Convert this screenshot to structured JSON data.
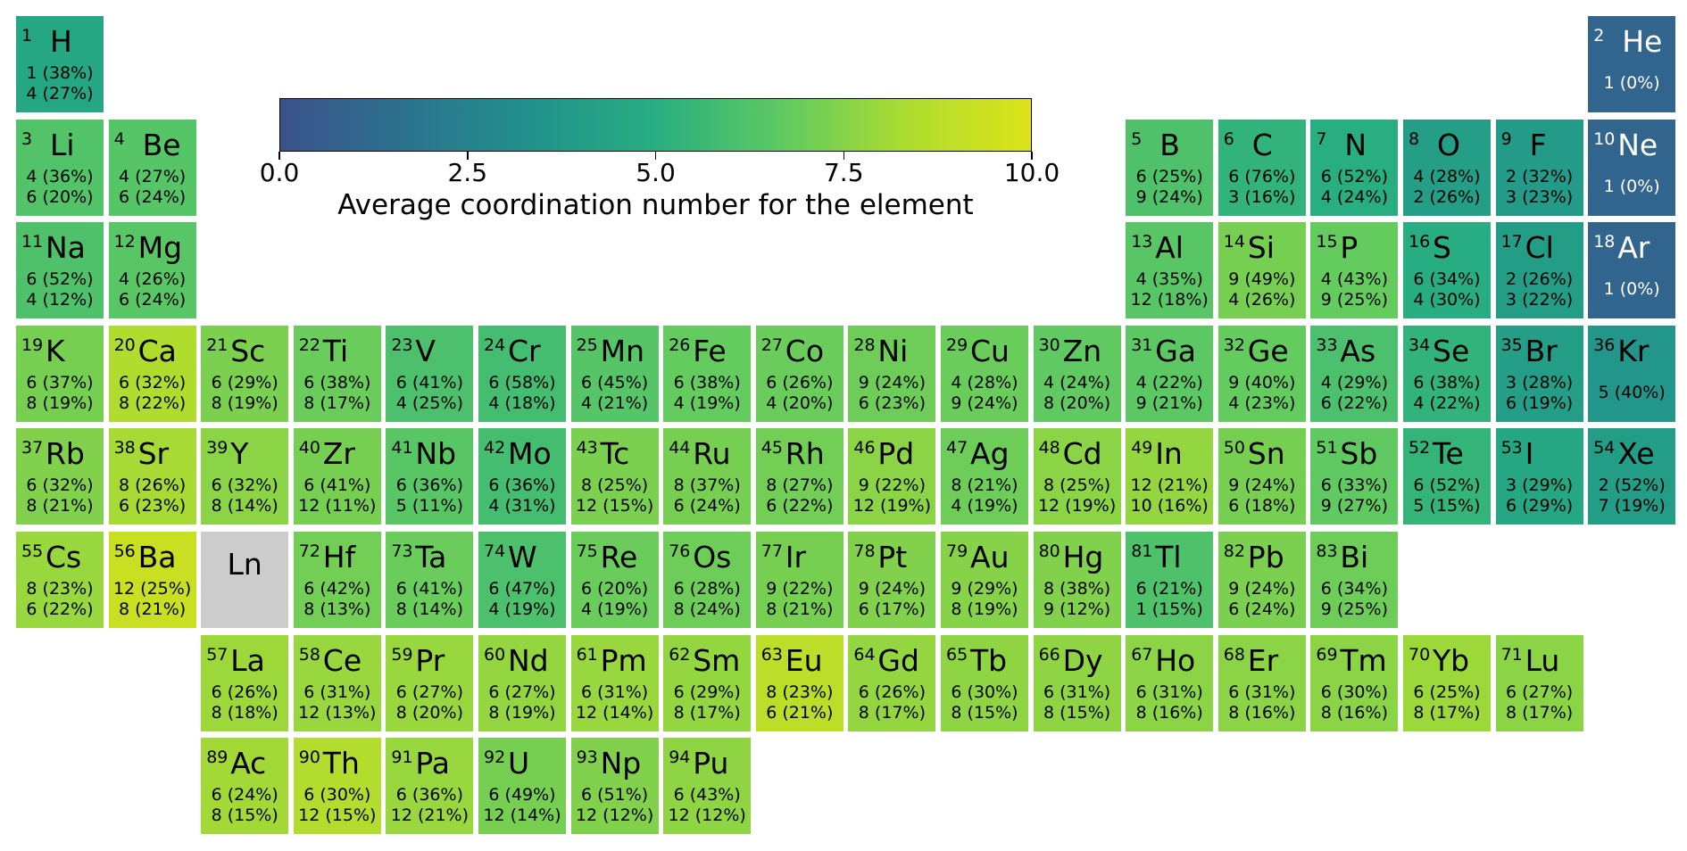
{
  "chart_data": {
    "type": "heatmap",
    "title": "",
    "colorbar": {
      "label": "Average coordination number for the element",
      "range": [
        0,
        10
      ],
      "ticks": [
        "0.0",
        "2.5",
        "5.0",
        "7.5",
        "10.0"
      ],
      "colormap": "viridis",
      "stops": [
        "#3b528b",
        "#2c728e",
        "#21918c",
        "#28ae80",
        "#5ec962",
        "#addc30",
        "#dde318"
      ]
    },
    "missing_color": "#cccccc",
    "elements": [
      {
        "z": "1",
        "sym": "H",
        "row": 1,
        "col": 1,
        "avg": 4.6,
        "l1": "1 (38%)",
        "l2": "4 (27%)"
      },
      {
        "z": "2",
        "sym": "He",
        "row": 1,
        "col": 18,
        "avg": 1.0,
        "l1": "1 (0%)",
        "l2": ""
      },
      {
        "z": "3",
        "sym": "Li",
        "row": 2,
        "col": 1,
        "avg": 6.3,
        "l1": "4 (36%)",
        "l2": "6 (20%)"
      },
      {
        "z": "4",
        "sym": "Be",
        "row": 2,
        "col": 2,
        "avg": 6.4,
        "l1": "4 (27%)",
        "l2": "6 (24%)"
      },
      {
        "z": "5",
        "sym": "B",
        "row": 2,
        "col": 13,
        "avg": 6.2,
        "l1": "6 (25%)",
        "l2": "9 (24%)"
      },
      {
        "z": "6",
        "sym": "C",
        "row": 2,
        "col": 14,
        "avg": 5.3,
        "l1": "6 (76%)",
        "l2": "3 (16%)"
      },
      {
        "z": "7",
        "sym": "N",
        "row": 2,
        "col": 15,
        "avg": 5.0,
        "l1": "6 (52%)",
        "l2": "4 (24%)"
      },
      {
        "z": "8",
        "sym": "O",
        "row": 2,
        "col": 16,
        "avg": 4.1,
        "l1": "4 (28%)",
        "l2": "2 (26%)"
      },
      {
        "z": "9",
        "sym": "F",
        "row": 2,
        "col": 17,
        "avg": 3.9,
        "l1": "2 (32%)",
        "l2": "3 (23%)"
      },
      {
        "z": "10",
        "sym": "Ne",
        "row": 2,
        "col": 18,
        "avg": 1.0,
        "l1": "1 (0%)",
        "l2": ""
      },
      {
        "z": "11",
        "sym": "Na",
        "row": 3,
        "col": 1,
        "avg": 6.2,
        "l1": "6 (52%)",
        "l2": "4 (12%)"
      },
      {
        "z": "12",
        "sym": "Mg",
        "row": 3,
        "col": 2,
        "avg": 6.5,
        "l1": "4 (26%)",
        "l2": "6 (24%)"
      },
      {
        "z": "13",
        "sym": "Al",
        "row": 3,
        "col": 13,
        "avg": 6.5,
        "l1": "4 (35%)",
        "l2": "12 (18%)"
      },
      {
        "z": "14",
        "sym": "Si",
        "row": 3,
        "col": 14,
        "avg": 7.2,
        "l1": "9 (49%)",
        "l2": "4 (26%)"
      },
      {
        "z": "15",
        "sym": "P",
        "row": 3,
        "col": 15,
        "avg": 6.8,
        "l1": "4 (43%)",
        "l2": "9 (25%)"
      },
      {
        "z": "16",
        "sym": "S",
        "row": 3,
        "col": 16,
        "avg": 4.9,
        "l1": "6 (34%)",
        "l2": "4 (30%)"
      },
      {
        "z": "17",
        "sym": "Cl",
        "row": 3,
        "col": 17,
        "avg": 4.0,
        "l1": "2 (26%)",
        "l2": "3 (22%)"
      },
      {
        "z": "18",
        "sym": "Ar",
        "row": 3,
        "col": 18,
        "avg": 1.0,
        "l1": "1 (0%)",
        "l2": ""
      },
      {
        "z": "19",
        "sym": "K",
        "row": 4,
        "col": 1,
        "avg": 7.2,
        "l1": "6 (37%)",
        "l2": "8 (19%)"
      },
      {
        "z": "20",
        "sym": "Ca",
        "row": 4,
        "col": 2,
        "avg": 8.4,
        "l1": "6 (32%)",
        "l2": "8 (22%)"
      },
      {
        "z": "21",
        "sym": "Sc",
        "row": 4,
        "col": 3,
        "avg": 7.3,
        "l1": "6 (29%)",
        "l2": "8 (19%)"
      },
      {
        "z": "22",
        "sym": "Ti",
        "row": 4,
        "col": 4,
        "avg": 6.9,
        "l1": "6 (38%)",
        "l2": "8 (17%)"
      },
      {
        "z": "23",
        "sym": "V",
        "row": 4,
        "col": 5,
        "avg": 6.1,
        "l1": "6 (41%)",
        "l2": "4 (25%)"
      },
      {
        "z": "24",
        "sym": "Cr",
        "row": 4,
        "col": 6,
        "avg": 5.9,
        "l1": "6 (58%)",
        "l2": "4 (18%)"
      },
      {
        "z": "25",
        "sym": "Mn",
        "row": 4,
        "col": 7,
        "avg": 6.4,
        "l1": "6 (45%)",
        "l2": "4 (21%)"
      },
      {
        "z": "26",
        "sym": "Fe",
        "row": 4,
        "col": 8,
        "avg": 6.8,
        "l1": "6 (38%)",
        "l2": "4 (19%)"
      },
      {
        "z": "27",
        "sym": "Co",
        "row": 4,
        "col": 9,
        "avg": 6.9,
        "l1": "6 (26%)",
        "l2": "4 (20%)"
      },
      {
        "z": "28",
        "sym": "Ni",
        "row": 4,
        "col": 10,
        "avg": 7.0,
        "l1": "9 (24%)",
        "l2": "6 (23%)"
      },
      {
        "z": "29",
        "sym": "Cu",
        "row": 4,
        "col": 11,
        "avg": 6.9,
        "l1": "4 (28%)",
        "l2": "9 (24%)"
      },
      {
        "z": "30",
        "sym": "Zn",
        "row": 4,
        "col": 12,
        "avg": 6.7,
        "l1": "4 (24%)",
        "l2": "8 (20%)"
      },
      {
        "z": "31",
        "sym": "Ga",
        "row": 4,
        "col": 13,
        "avg": 6.6,
        "l1": "4 (22%)",
        "l2": "9 (21%)"
      },
      {
        "z": "32",
        "sym": "Ge",
        "row": 4,
        "col": 14,
        "avg": 6.8,
        "l1": "9 (40%)",
        "l2": "4 (23%)"
      },
      {
        "z": "33",
        "sym": "As",
        "row": 4,
        "col": 15,
        "avg": 6.1,
        "l1": "4 (29%)",
        "l2": "6 (22%)"
      },
      {
        "z": "34",
        "sym": "Se",
        "row": 4,
        "col": 16,
        "avg": 5.3,
        "l1": "6 (38%)",
        "l2": "4 (22%)"
      },
      {
        "z": "35",
        "sym": "Br",
        "row": 4,
        "col": 17,
        "avg": 4.1,
        "l1": "3 (28%)",
        "l2": "6 (19%)"
      },
      {
        "z": "36",
        "sym": "Kr",
        "row": 4,
        "col": 18,
        "avg": 3.6,
        "l1": "5 (40%)",
        "l2": ""
      },
      {
        "z": "37",
        "sym": "Rb",
        "row": 5,
        "col": 1,
        "avg": 7.4,
        "l1": "6 (32%)",
        "l2": "8 (21%)"
      },
      {
        "z": "38",
        "sym": "Sr",
        "row": 5,
        "col": 2,
        "avg": 8.2,
        "l1": "8 (26%)",
        "l2": "6 (23%)"
      },
      {
        "z": "39",
        "sym": "Y",
        "row": 5,
        "col": 3,
        "avg": 7.6,
        "l1": "6 (32%)",
        "l2": "8 (14%)"
      },
      {
        "z": "40",
        "sym": "Zr",
        "row": 5,
        "col": 4,
        "avg": 7.2,
        "l1": "6 (41%)",
        "l2": "12 (11%)"
      },
      {
        "z": "41",
        "sym": "Nb",
        "row": 5,
        "col": 5,
        "avg": 6.5,
        "l1": "6 (36%)",
        "l2": "5 (11%)"
      },
      {
        "z": "42",
        "sym": "Mo",
        "row": 5,
        "col": 6,
        "avg": 5.9,
        "l1": "6 (36%)",
        "l2": "4 (31%)"
      },
      {
        "z": "43",
        "sym": "Tc",
        "row": 5,
        "col": 7,
        "avg": 7.3,
        "l1": "8 (25%)",
        "l2": "12 (15%)"
      },
      {
        "z": "44",
        "sym": "Ru",
        "row": 5,
        "col": 8,
        "avg": 7.2,
        "l1": "8 (37%)",
        "l2": "6 (24%)"
      },
      {
        "z": "45",
        "sym": "Rh",
        "row": 5,
        "col": 9,
        "avg": 7.1,
        "l1": "8 (27%)",
        "l2": "6 (22%)"
      },
      {
        "z": "46",
        "sym": "Pd",
        "row": 5,
        "col": 10,
        "avg": 7.6,
        "l1": "9 (22%)",
        "l2": "12 (19%)"
      },
      {
        "z": "47",
        "sym": "Ag",
        "row": 5,
        "col": 11,
        "avg": 7.0,
        "l1": "8 (21%)",
        "l2": "4 (19%)"
      },
      {
        "z": "48",
        "sym": "Cd",
        "row": 5,
        "col": 12,
        "avg": 7.6,
        "l1": "8 (25%)",
        "l2": "12 (19%)"
      },
      {
        "z": "49",
        "sym": "In",
        "row": 5,
        "col": 13,
        "avg": 7.8,
        "l1": "12 (21%)",
        "l2": "10 (16%)"
      },
      {
        "z": "50",
        "sym": "Sn",
        "row": 5,
        "col": 14,
        "avg": 7.2,
        "l1": "9 (24%)",
        "l2": "6 (18%)"
      },
      {
        "z": "51",
        "sym": "Sb",
        "row": 5,
        "col": 15,
        "avg": 6.7,
        "l1": "6 (33%)",
        "l2": "9 (27%)"
      },
      {
        "z": "52",
        "sym": "Te",
        "row": 5,
        "col": 16,
        "avg": 5.4,
        "l1": "6 (52%)",
        "l2": "5 (15%)"
      },
      {
        "z": "53",
        "sym": "I",
        "row": 5,
        "col": 17,
        "avg": 4.6,
        "l1": "3 (29%)",
        "l2": "6 (29%)"
      },
      {
        "z": "54",
        "sym": "Xe",
        "row": 5,
        "col": 18,
        "avg": 4.0,
        "l1": "2 (52%)",
        "l2": "7 (19%)"
      },
      {
        "z": "55",
        "sym": "Cs",
        "row": 6,
        "col": 1,
        "avg": 7.9,
        "l1": "8 (23%)",
        "l2": "6 (22%)"
      },
      {
        "z": "56",
        "sym": "Ba",
        "row": 6,
        "col": 2,
        "avg": 9.3,
        "l1": "12 (25%)",
        "l2": "8 (21%)"
      },
      {
        "z": "",
        "sym": "Ln",
        "row": 6,
        "col": 3,
        "avg": null,
        "l1": "",
        "l2": ""
      },
      {
        "z": "72",
        "sym": "Hf",
        "row": 6,
        "col": 4,
        "avg": 7.1,
        "l1": "6 (42%)",
        "l2": "8 (13%)"
      },
      {
        "z": "73",
        "sym": "Ta",
        "row": 6,
        "col": 5,
        "avg": 6.9,
        "l1": "6 (41%)",
        "l2": "8 (14%)"
      },
      {
        "z": "74",
        "sym": "W",
        "row": 6,
        "col": 6,
        "avg": 6.1,
        "l1": "6 (47%)",
        "l2": "4 (19%)"
      },
      {
        "z": "75",
        "sym": "Re",
        "row": 6,
        "col": 7,
        "avg": 6.9,
        "l1": "6 (20%)",
        "l2": "4 (19%)"
      },
      {
        "z": "76",
        "sym": "Os",
        "row": 6,
        "col": 8,
        "avg": 7.0,
        "l1": "6 (28%)",
        "l2": "8 (24%)"
      },
      {
        "z": "77",
        "sym": "Ir",
        "row": 6,
        "col": 9,
        "avg": 7.2,
        "l1": "9 (22%)",
        "l2": "8 (21%)"
      },
      {
        "z": "78",
        "sym": "Pt",
        "row": 6,
        "col": 10,
        "avg": 7.4,
        "l1": "9 (24%)",
        "l2": "6 (17%)"
      },
      {
        "z": "79",
        "sym": "Au",
        "row": 6,
        "col": 11,
        "avg": 7.5,
        "l1": "9 (29%)",
        "l2": "8 (19%)"
      },
      {
        "z": "80",
        "sym": "Hg",
        "row": 6,
        "col": 12,
        "avg": 7.4,
        "l1": "8 (38%)",
        "l2": "9 (12%)"
      },
      {
        "z": "81",
        "sym": "Tl",
        "row": 6,
        "col": 13,
        "avg": 6.2,
        "l1": "6 (21%)",
        "l2": "1 (15%)"
      },
      {
        "z": "82",
        "sym": "Pb",
        "row": 6,
        "col": 14,
        "avg": 7.3,
        "l1": "9 (24%)",
        "l2": "6 (24%)"
      },
      {
        "z": "83",
        "sym": "Bi",
        "row": 6,
        "col": 15,
        "avg": 7.0,
        "l1": "6 (34%)",
        "l2": "9 (25%)"
      },
      {
        "z": "57",
        "sym": "La",
        "row": 7,
        "col": 3,
        "avg": 8.0,
        "l1": "6 (26%)",
        "l2": "8 (18%)"
      },
      {
        "z": "58",
        "sym": "Ce",
        "row": 7,
        "col": 4,
        "avg": 7.9,
        "l1": "6 (31%)",
        "l2": "12 (13%)"
      },
      {
        "z": "59",
        "sym": "Pr",
        "row": 7,
        "col": 5,
        "avg": 7.9,
        "l1": "6 (27%)",
        "l2": "8 (20%)"
      },
      {
        "z": "60",
        "sym": "Nd",
        "row": 7,
        "col": 6,
        "avg": 7.8,
        "l1": "6 (27%)",
        "l2": "8 (19%)"
      },
      {
        "z": "61",
        "sym": "Pm",
        "row": 7,
        "col": 7,
        "avg": 7.9,
        "l1": "6 (31%)",
        "l2": "12 (14%)"
      },
      {
        "z": "62",
        "sym": "Sm",
        "row": 7,
        "col": 8,
        "avg": 7.8,
        "l1": "6 (29%)",
        "l2": "8 (17%)"
      },
      {
        "z": "63",
        "sym": "Eu",
        "row": 7,
        "col": 9,
        "avg": 8.9,
        "l1": "8 (23%)",
        "l2": "6 (21%)"
      },
      {
        "z": "64",
        "sym": "Gd",
        "row": 7,
        "col": 10,
        "avg": 7.8,
        "l1": "6 (26%)",
        "l2": "8 (17%)"
      },
      {
        "z": "65",
        "sym": "Tb",
        "row": 7,
        "col": 11,
        "avg": 7.7,
        "l1": "6 (30%)",
        "l2": "8 (15%)"
      },
      {
        "z": "66",
        "sym": "Dy",
        "row": 7,
        "col": 12,
        "avg": 7.7,
        "l1": "6 (31%)",
        "l2": "8 (15%)"
      },
      {
        "z": "67",
        "sym": "Ho",
        "row": 7,
        "col": 13,
        "avg": 7.6,
        "l1": "6 (31%)",
        "l2": "8 (16%)"
      },
      {
        "z": "68",
        "sym": "Er",
        "row": 7,
        "col": 14,
        "avg": 7.6,
        "l1": "6 (31%)",
        "l2": "8 (16%)"
      },
      {
        "z": "69",
        "sym": "Tm",
        "row": 7,
        "col": 15,
        "avg": 7.6,
        "l1": "6 (30%)",
        "l2": "8 (16%)"
      },
      {
        "z": "70",
        "sym": "Yb",
        "row": 7,
        "col": 16,
        "avg": 8.0,
        "l1": "6 (25%)",
        "l2": "8 (17%)"
      },
      {
        "z": "71",
        "sym": "Lu",
        "row": 7,
        "col": 17,
        "avg": 7.6,
        "l1": "6 (27%)",
        "l2": "8 (17%)"
      },
      {
        "z": "89",
        "sym": "Ac",
        "row": 8,
        "col": 3,
        "avg": 8.1,
        "l1": "6 (24%)",
        "l2": "8 (15%)"
      },
      {
        "z": "90",
        "sym": "Th",
        "row": 8,
        "col": 4,
        "avg": 8.5,
        "l1": "6 (30%)",
        "l2": "12 (15%)"
      },
      {
        "z": "91",
        "sym": "Pa",
        "row": 8,
        "col": 5,
        "avg": 7.9,
        "l1": "6 (36%)",
        "l2": "12 (21%)"
      },
      {
        "z": "92",
        "sym": "U",
        "row": 8,
        "col": 6,
        "avg": 7.2,
        "l1": "6 (49%)",
        "l2": "12 (14%)"
      },
      {
        "z": "93",
        "sym": "Np",
        "row": 8,
        "col": 7,
        "avg": 7.4,
        "l1": "6 (51%)",
        "l2": "12 (12%)"
      },
      {
        "z": "94",
        "sym": "Pu",
        "row": 8,
        "col": 8,
        "avg": 7.7,
        "l1": "6 (43%)",
        "l2": "12 (12%)"
      }
    ]
  }
}
